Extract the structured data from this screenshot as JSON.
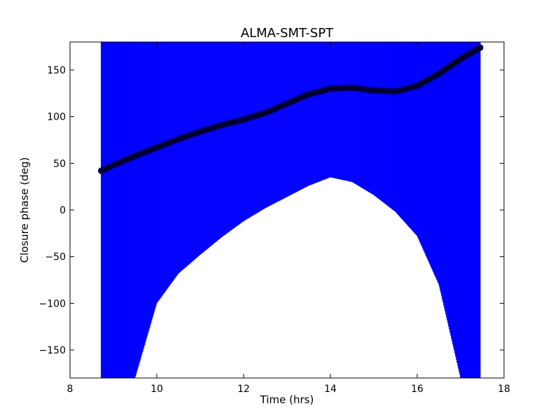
{
  "chart_data": {
    "type": "scatter",
    "title": "ALMA-SMT-SPT",
    "xlabel": "Time (hrs)",
    "ylabel": "Closure phase (deg)",
    "xlim": [
      8,
      18
    ],
    "ylim": [
      -180,
      180
    ],
    "xticks": [
      8,
      10,
      12,
      14,
      16,
      18
    ],
    "yticks": [
      -150,
      -100,
      -50,
      0,
      50,
      100,
      150
    ],
    "grid": false,
    "colors": {
      "errorbar": "#0000ff",
      "points": "#000000",
      "points_edge": "#000080"
    },
    "series": [
      {
        "x": [
          8.72,
          9.0,
          9.5,
          10.0,
          10.5,
          11.0,
          11.5,
          12.0,
          12.5,
          13.0,
          13.5,
          14.0,
          14.5,
          15.0,
          15.5,
          16.0,
          16.5,
          17.0,
          17.45
        ],
        "y": [
          42,
          48,
          58,
          67,
          76,
          84,
          91,
          97,
          104,
          114,
          124,
          130,
          131,
          128,
          127,
          133,
          146,
          162,
          174
        ],
        "yerr_lower": [
          -180,
          -180,
          -180,
          -100,
          -68,
          -48,
          -29,
          -12,
          2,
          14,
          26,
          35,
          30,
          16,
          -2,
          -28,
          -80,
          -180,
          -180
        ],
        "yerr_upper": [
          180,
          180,
          180,
          180,
          180,
          180,
          180,
          180,
          180,
          180,
          180,
          180,
          180,
          180,
          180,
          180,
          180,
          180,
          180
        ]
      }
    ]
  }
}
